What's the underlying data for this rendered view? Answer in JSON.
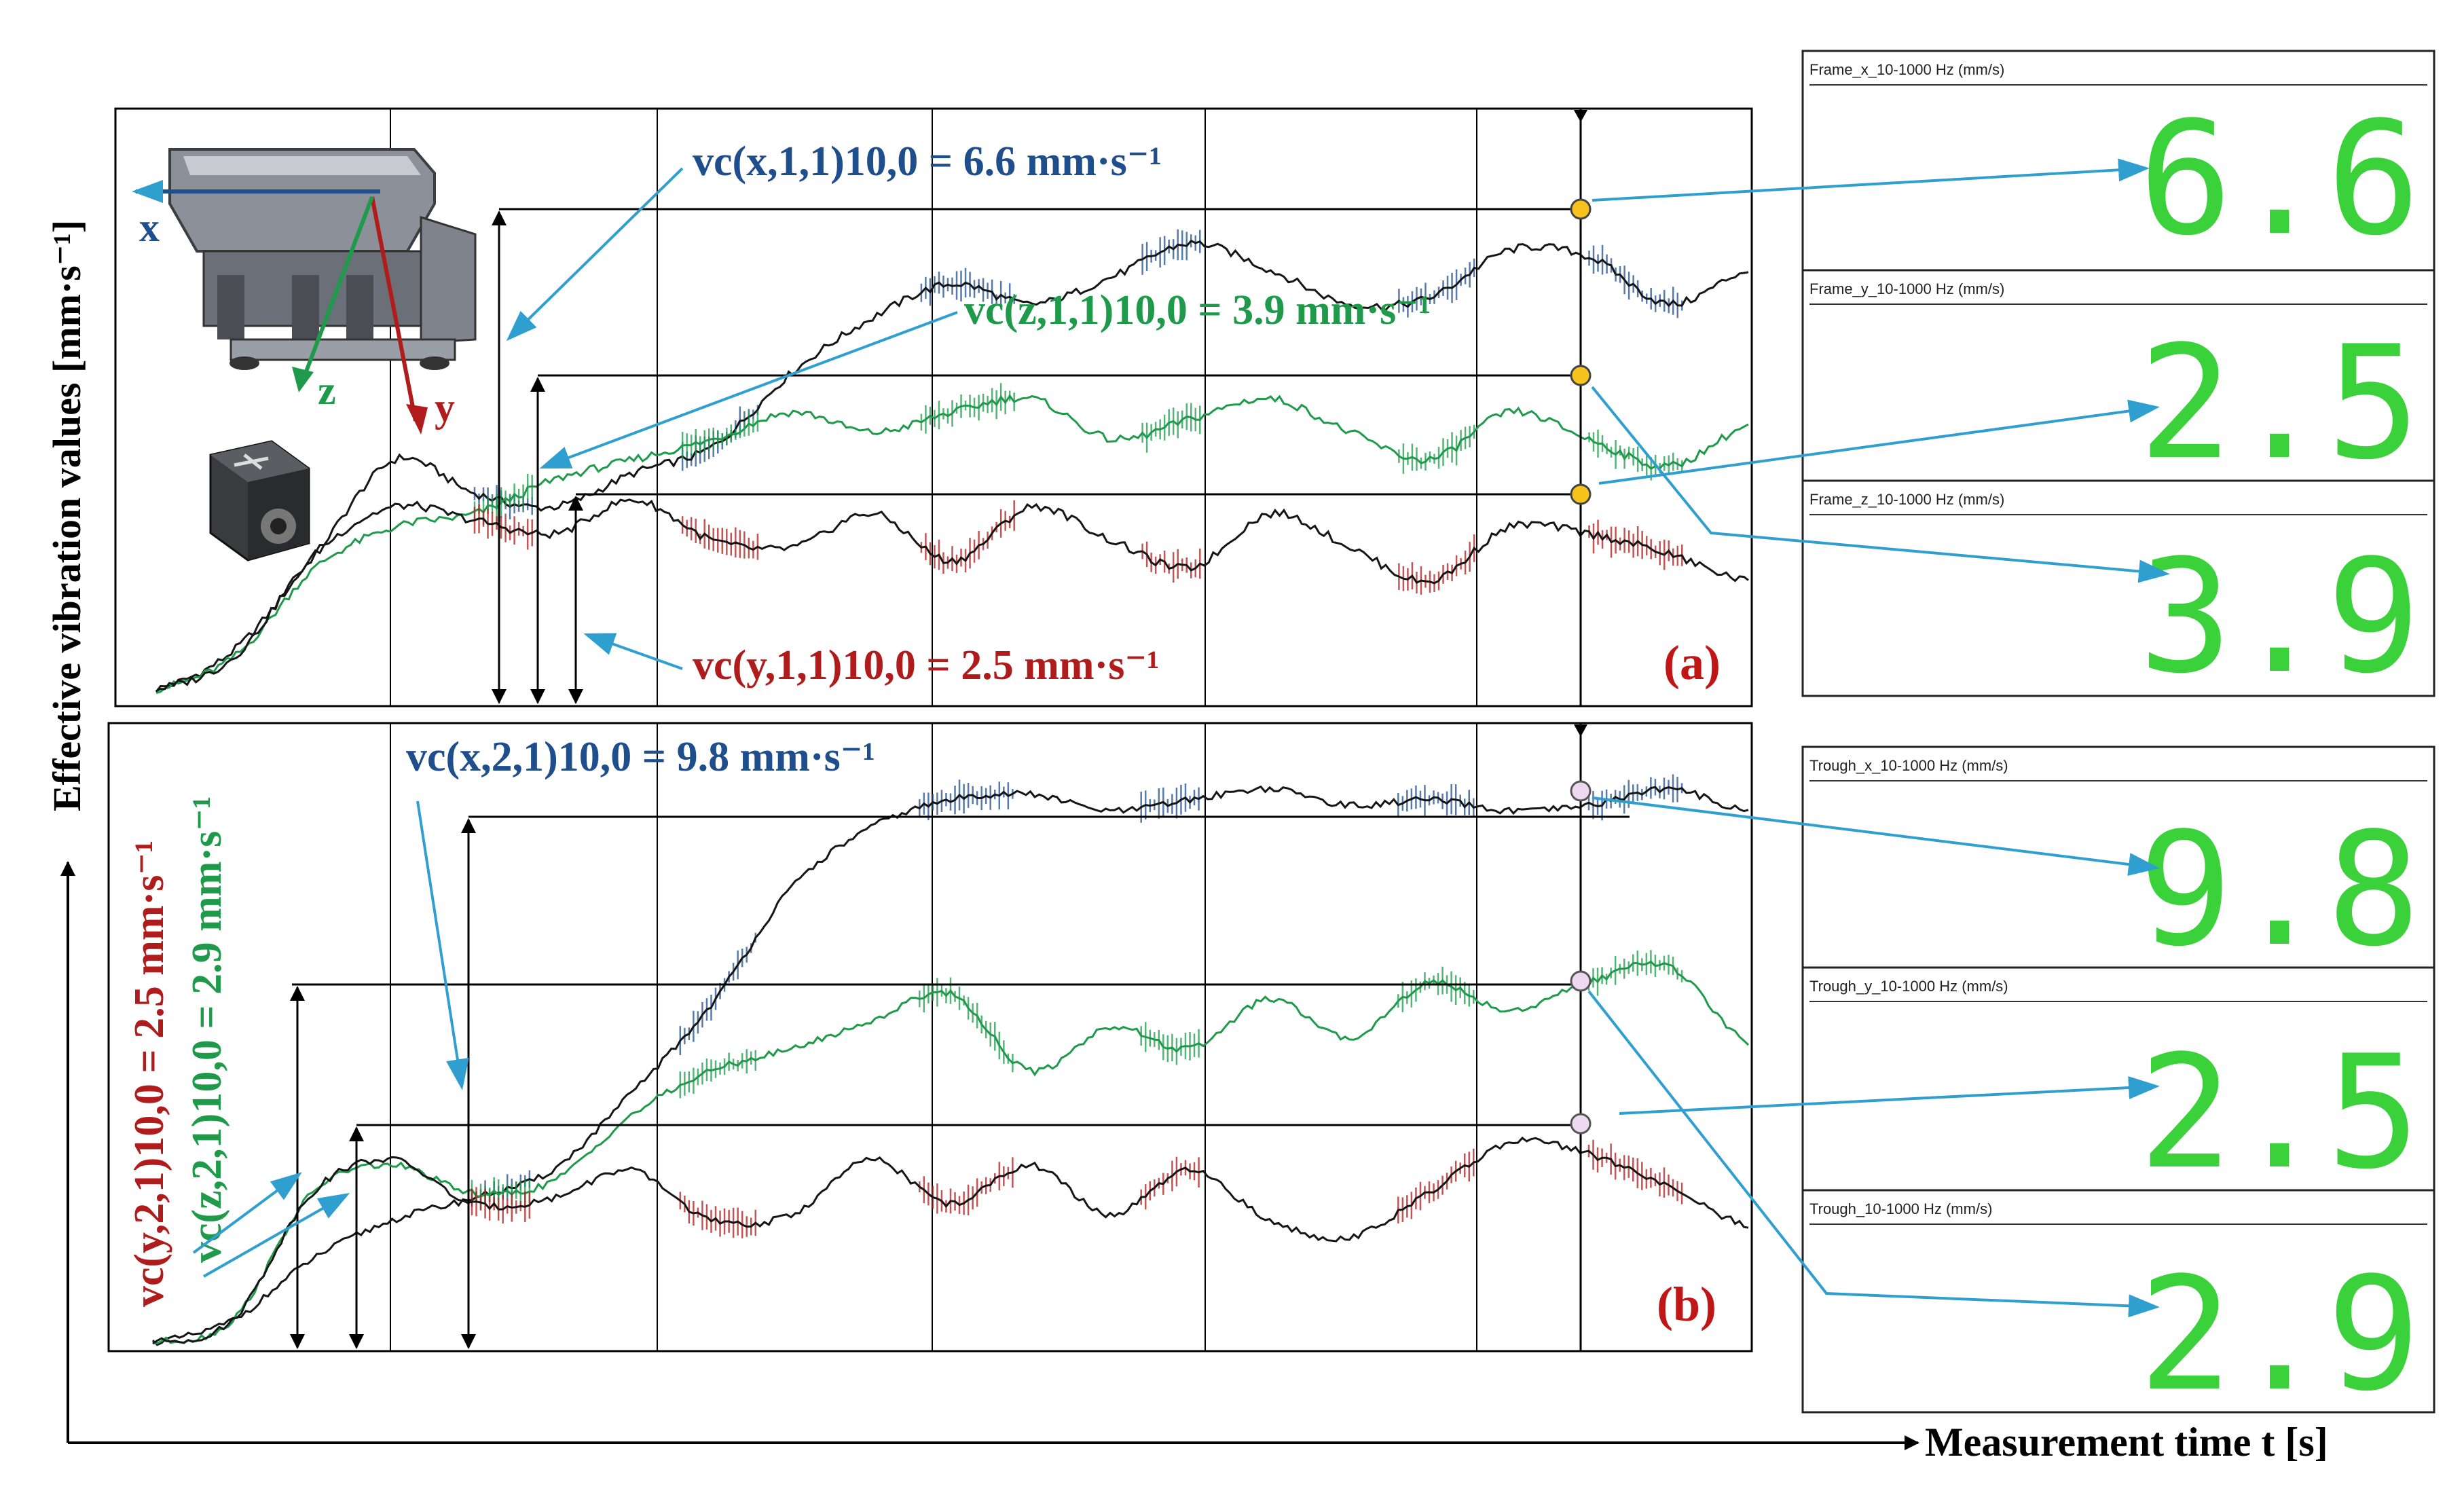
{
  "axes": {
    "y_label": "Effective vibration values [mm·s⁻¹]",
    "x_label": "Measurement time t [s]"
  },
  "colors": {
    "x_series": "#1f4e8c",
    "y_series": "#b01c1c",
    "z_series": "#1e9a4a",
    "display_green": "#3bd13b",
    "arrow": "#2f9fd0"
  },
  "icons": [
    "feeder-machine-icon",
    "accelerometer-sensor-icon"
  ],
  "panel_a": {
    "tag": "(a)",
    "axis_letters": {
      "x": "x",
      "y": "y",
      "z": "z"
    },
    "annot_x": "vc(x,1,1)10,0 = 6.6 mm·s⁻¹",
    "annot_z": "vc(z,1,1)10,0 = 3.9 mm·s⁻¹",
    "annot_y": "vc(y,1,1)10,0 = 2.5 mm·s⁻¹"
  },
  "panel_b": {
    "tag": "(b)",
    "annot_x": "vc(x,2,1)10,0 = 9.8 mm·s⁻¹",
    "annot_y": "vc(y,2,1)10,0 = 2.5 mm·s⁻¹",
    "annot_z": "vc(z,2,1)10,0 = 2.9 mm·s⁻¹"
  },
  "displays": [
    {
      "title": "Frame_x_10-1000 Hz (mm/s)",
      "value": "6.6",
      "title_color": "#1f2a55"
    },
    {
      "title": "Frame_y_10-1000 Hz (mm/s)",
      "value": "2.5",
      "title_color": "#5a1515"
    },
    {
      "title": "Frame_z_10-1000 Hz (mm/s)",
      "value": "3.9",
      "title_color": "#2fae3a"
    },
    {
      "title": "Trough_x_10-1000 Hz (mm/s)",
      "value": "9.8",
      "title_color": "#1f2a55"
    },
    {
      "title": "Trough_y_10-1000 Hz (mm/s)",
      "value": "2.5",
      "title_color": "#5a1515"
    },
    {
      "title": "Trough_10-1000 Hz (mm/s)",
      "value": "2.9",
      "title_color": "#2fae3a"
    }
  ],
  "chart_data": [
    {
      "type": "line",
      "panel": "(a)",
      "xlabel": "Measurement time t [s]",
      "ylabel": "Effective vibration values [mm·s⁻¹]",
      "grid": true,
      "x_tick_labels": [],
      "series": [
        {
          "axis": "x",
          "color": "#1f4e8c",
          "cursor_value": 6.6,
          "values": [
            0.2,
            0.8,
            2.2,
            3.6,
            3.1,
            2.9,
            3.4,
            3.8,
            4.9,
            5.7,
            6.2,
            5.9,
            6.3,
            6.8,
            6.4,
            5.9,
            6.0,
            6.7,
            6.6,
            5.9,
            6.4
          ]
        },
        {
          "axis": "z",
          "color": "#1e9a4a",
          "cursor_value": 3.9,
          "values": [
            0.2,
            0.7,
            2.0,
            2.6,
            2.8,
            3.3,
            3.6,
            3.9,
            4.3,
            4.0,
            4.3,
            4.5,
            3.9,
            4.2,
            4.5,
            4.0,
            3.6,
            4.3,
            3.9,
            3.5,
            4.1
          ]
        },
        {
          "axis": "y",
          "color": "#b01c1c",
          "cursor_value": 2.5,
          "values": [
            0.2,
            0.7,
            2.2,
            2.9,
            2.7,
            2.5,
            3.0,
            2.4,
            2.3,
            2.8,
            2.1,
            2.9,
            2.4,
            2.0,
            2.8,
            2.3,
            1.8,
            2.6,
            2.5,
            2.2,
            1.8
          ]
        }
      ]
    },
    {
      "type": "line",
      "panel": "(b)",
      "xlabel": "Measurement time t [s]",
      "ylabel": "Effective vibration values [mm·s⁻¹]",
      "grid": true,
      "x_tick_labels": [],
      "series": [
        {
          "axis": "x",
          "color": "#1f4e8c",
          "cursor_value": 9.8,
          "values": [
            0.1,
            0.5,
            1.6,
            2.3,
            2.7,
            3.2,
            4.6,
            6.2,
            8.3,
            9.4,
            9.9,
            10.0,
            9.7,
            9.9,
            10.1,
            9.8,
            9.9,
            9.7,
            9.8,
            10.1,
            9.7
          ]
        },
        {
          "axis": "z",
          "color": "#1e9a4a",
          "cursor_value": 2.9,
          "values": [
            0.1,
            0.5,
            2.8,
            3.3,
            2.8,
            3.0,
            4.2,
            5.0,
            5.4,
            5.9,
            6.4,
            5.0,
            5.8,
            5.4,
            6.3,
            5.6,
            6.6,
            6.1,
            6.6,
            6.9,
            5.5
          ]
        },
        {
          "axis": "y",
          "color": "#b01c1c",
          "cursor_value": 2.5,
          "values": [
            0.1,
            0.5,
            2.8,
            3.4,
            2.6,
            2.7,
            3.2,
            2.3,
            2.4,
            3.4,
            2.6,
            3.3,
            2.4,
            3.2,
            2.3,
            2.0,
            2.8,
            3.7,
            3.5,
            2.9,
            2.2
          ]
        }
      ]
    }
  ]
}
